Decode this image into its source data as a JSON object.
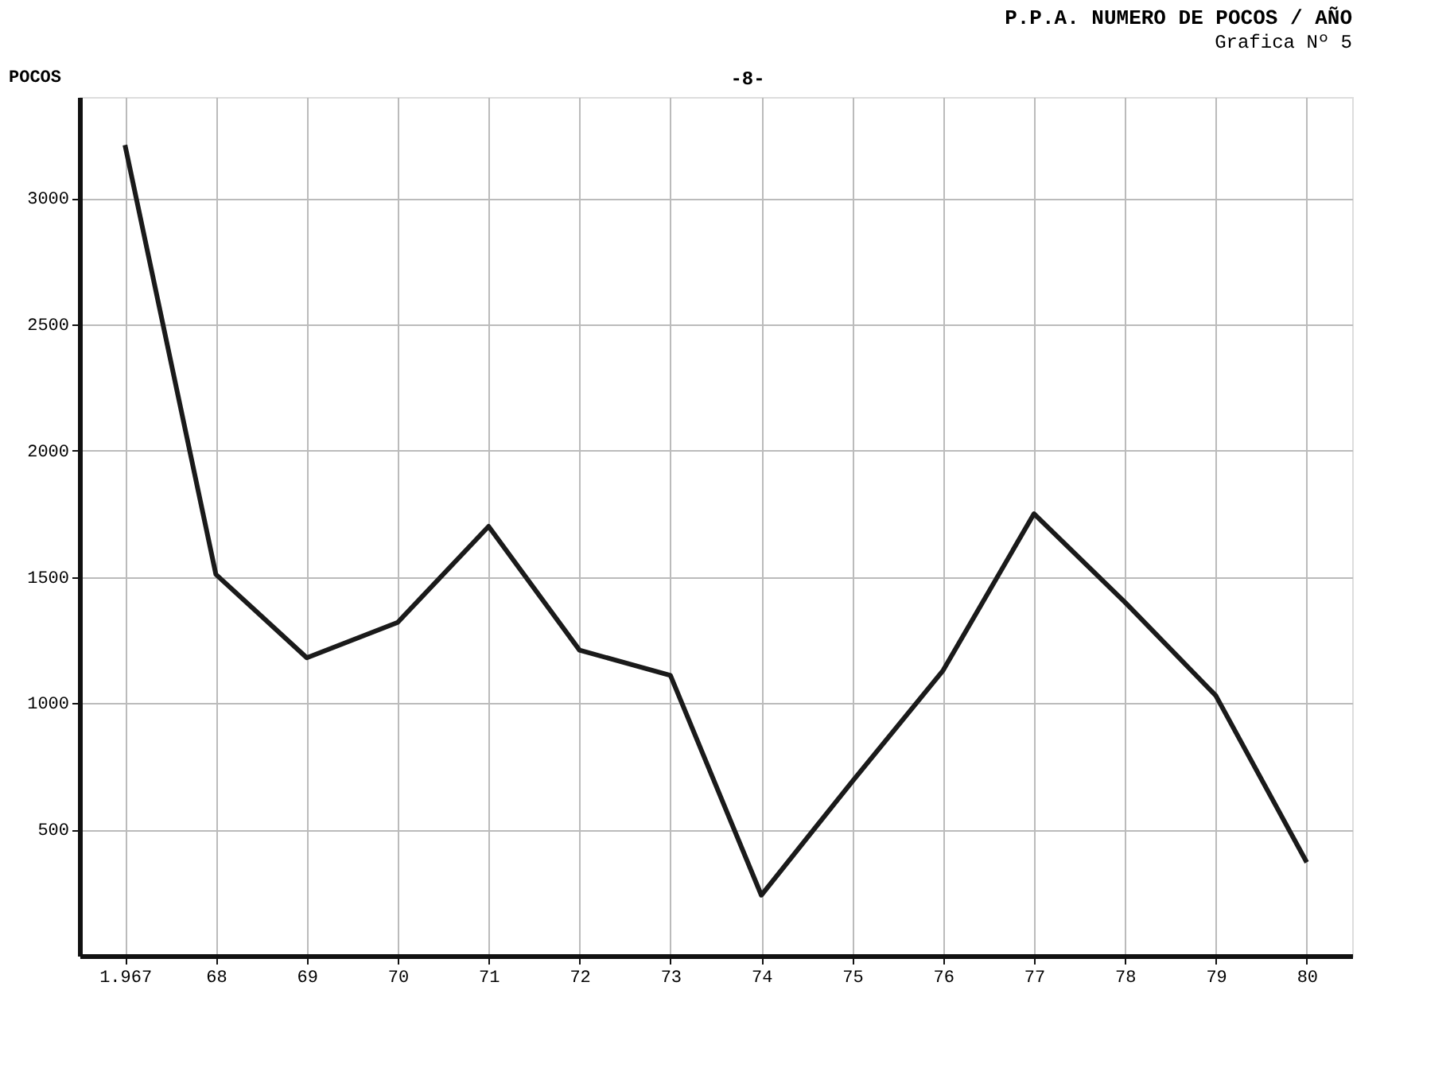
{
  "chart_data": {
    "type": "line",
    "title": "P.P.A. NUMERO DE POCOS / AÑO",
    "subtitle": "Grafica Nº 5",
    "ylabel": "POCOS",
    "annotations": [
      "-8-"
    ],
    "categories": [
      "1.967",
      "68",
      "69",
      "70",
      "71",
      "72",
      "73",
      "74",
      "75",
      "76",
      "77",
      "78",
      "79",
      "80"
    ],
    "series": [
      {
        "color": "#1a1a1a",
        "values": [
          3210,
          1510,
          1180,
          1320,
          1700,
          1210,
          1110,
          240,
          690,
          1130,
          1750,
          1400,
          1030,
          370
        ]
      }
    ],
    "ylim": [
      0,
      3400
    ],
    "yticks": [
      500,
      1000,
      1500,
      2000,
      2500,
      3000
    ],
    "grid": true,
    "legend": false,
    "marker": "none",
    "line_style": "solid"
  }
}
